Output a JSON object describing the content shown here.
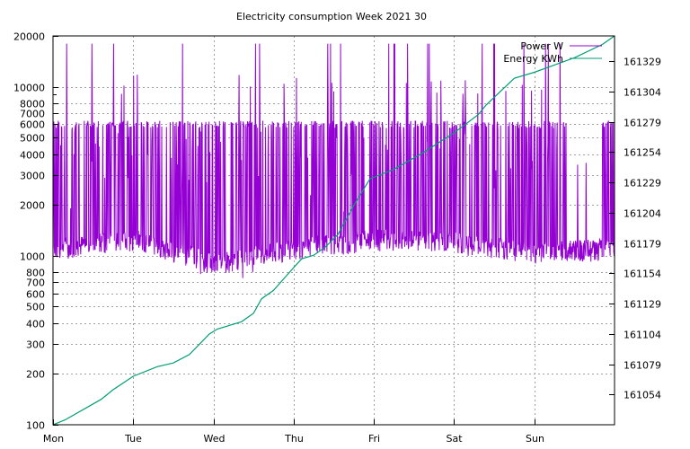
{
  "chart_data": {
    "type": "line",
    "title": "Electricity consumption Week 2021 30",
    "x_ticks": [
      "Mon",
      "Tue",
      "Wed",
      "Thu",
      "Fri",
      "Sat",
      "Sun"
    ],
    "y_left": {
      "scale": "log",
      "range": [
        100,
        20000
      ],
      "ticks": [
        100,
        200,
        300,
        400,
        500,
        600,
        700,
        800,
        1000,
        2000,
        3000,
        4000,
        5000,
        6000,
        7000,
        8000,
        10000,
        20000
      ]
    },
    "y_right": {
      "scale": "linear",
      "range": [
        161029,
        161350
      ],
      "ticks": [
        161054,
        161079,
        161104,
        161129,
        161154,
        161179,
        161204,
        161229,
        161254,
        161279,
        161304,
        161329
      ]
    },
    "grid": true,
    "legend_position": "top-right",
    "series": [
      {
        "name": "Power W",
        "axis": "left",
        "color": "#9400d3",
        "style": "spiky-log-series",
        "baseline_by_day": [
          1100,
          1250,
          900,
          1100,
          1250,
          1200,
          1050,
          1100
        ],
        "peak_value": 6000,
        "spike_max": 18000
      },
      {
        "name": "Energy KWh",
        "axis": "right",
        "color": "#009e73",
        "x_days": [
          0.0,
          0.15,
          0.6,
          0.75,
          1.0,
          1.3,
          1.5,
          1.7,
          1.95,
          2.05,
          2.35,
          2.5,
          2.6,
          2.75,
          2.95,
          3.1,
          3.25,
          3.4,
          3.55,
          3.75,
          3.95,
          4.25,
          4.6,
          5.0,
          5.3,
          5.4,
          5.75,
          6.0,
          6.25,
          6.5,
          6.85
        ],
        "y_kwh": [
          161029,
          161033,
          161050,
          161058,
          161069,
          161077,
          161080,
          161087,
          161104,
          161108,
          161114,
          161121,
          161133,
          161140,
          161155,
          161166,
          161169,
          161176,
          161186,
          161210,
          161232,
          161240,
          161253,
          161270,
          161285,
          161293,
          161315,
          161320,
          161326,
          161332,
          161343
        ]
      }
    ]
  }
}
